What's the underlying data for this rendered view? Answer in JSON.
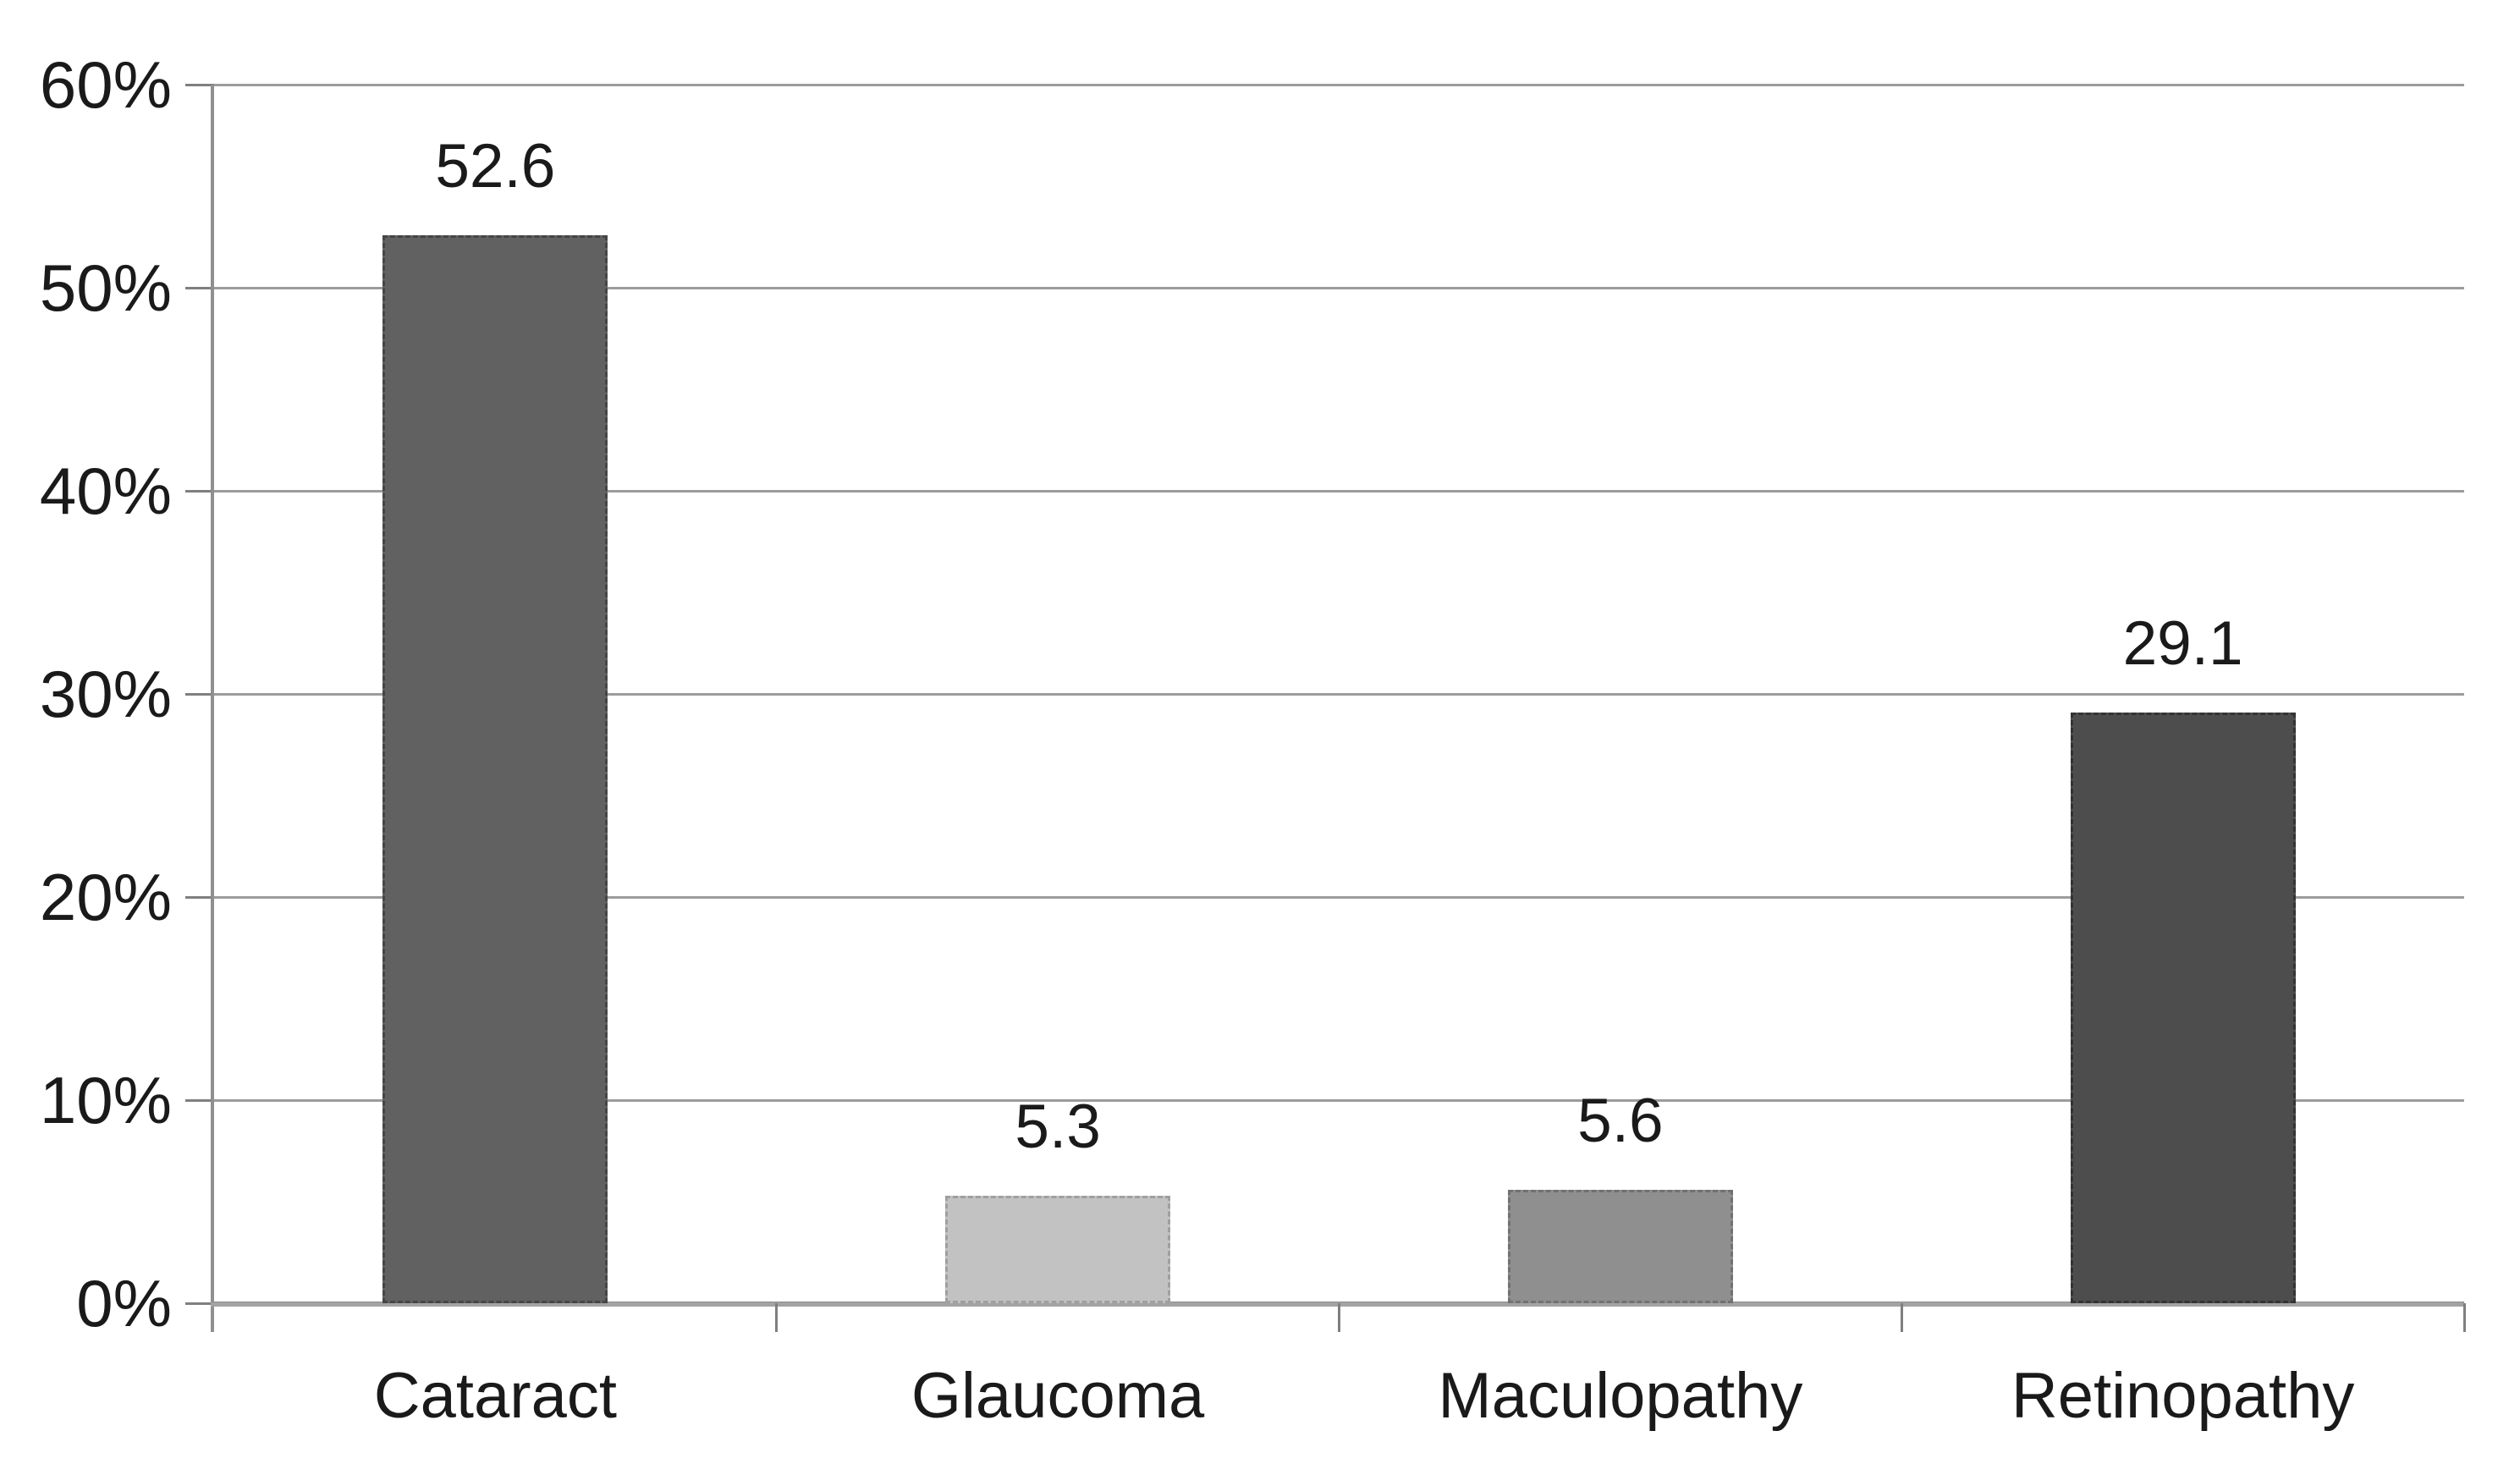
{
  "chart_data": {
    "type": "bar",
    "categories": [
      "Cataract",
      "Glaucoma",
      "Maculopathy",
      "Retinopathy"
    ],
    "values": [
      52.6,
      5.3,
      5.6,
      29.1
    ],
    "value_labels": [
      "52.6",
      "5.3",
      "5.6",
      "29.1"
    ],
    "y_tick_labels": [
      "0%",
      "10%",
      "20%",
      "30%",
      "40%",
      "50%",
      "60%"
    ],
    "ylim": [
      0,
      60
    ],
    "y_tick_interval": 10,
    "grid": true,
    "legend": false,
    "bar_styles": [
      {
        "category": "Cataract",
        "fill": "#616161",
        "border": "#454545",
        "pattern": "solid"
      },
      {
        "category": "Glaucoma",
        "fill": "#c2c2c2",
        "border": "#9f9f9f",
        "pattern": "weave"
      },
      {
        "category": "Maculopathy",
        "fill": "#8f8f8f",
        "border": "#717171",
        "pattern": "weave"
      },
      {
        "category": "Retinopathy",
        "fill": "#4d4d4d",
        "border": "#333333",
        "pattern": "weave"
      }
    ],
    "colors": {
      "grid": "#9c9c9c",
      "axis": "#8f8f8f",
      "tick": "#7f7f7f",
      "text": "#1a1a1a",
      "background": "#ffffff"
    }
  }
}
